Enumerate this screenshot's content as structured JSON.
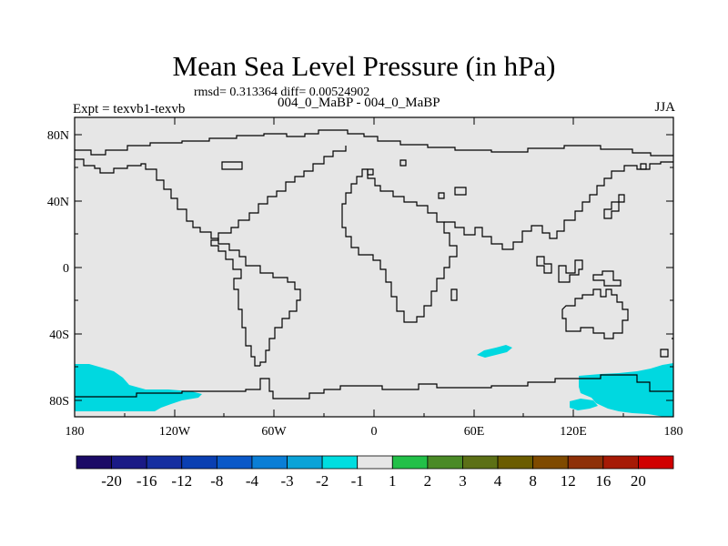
{
  "title": "Mean Sea Level Pressure (in hPa)",
  "stats": "rmsd= 0.313364 diff= 0.00524902",
  "periods": "004_0_MaBP - 004_0_MaBP",
  "experiment": "Expt = texvb1-texvb",
  "season": "JJA",
  "colors": {
    "background_field": "#e6e6e6",
    "anomaly_fill": "#00d8e0",
    "coastline": "#000000"
  },
  "map": {
    "lat_ticks": [
      "80N",
      "40N",
      "0",
      "40S",
      "80S"
    ],
    "lon_ticks": [
      "180",
      "120W",
      "60W",
      "0",
      "60E",
      "120E",
      "180"
    ],
    "highlighted_region_legend_label": "-1"
  },
  "colorbar": {
    "bins": [
      {
        "color": "#1b0a66"
      },
      {
        "color": "#1a1a86"
      },
      {
        "color": "#152ea0"
      },
      {
        "color": "#0a3fb2"
      },
      {
        "color": "#0a58c8"
      },
      {
        "color": "#0a7ed6"
      },
      {
        "color": "#0aa3d8"
      },
      {
        "color": "#00dde0"
      },
      {
        "color": "#e6e6e6"
      },
      {
        "color": "#22c048"
      },
      {
        "color": "#4a8a26"
      },
      {
        "color": "#5c7016"
      },
      {
        "color": "#6b5c00"
      },
      {
        "color": "#7f4a00"
      },
      {
        "color": "#8e3008"
      },
      {
        "color": "#a61a06"
      },
      {
        "color": "#d00000"
      }
    ],
    "labels": [
      "-20",
      "-16",
      "-12",
      "-8",
      "-4",
      "-3",
      "-2",
      "-1",
      "1",
      "2",
      "3",
      "4",
      "8",
      "12",
      "16",
      "20"
    ]
  }
}
